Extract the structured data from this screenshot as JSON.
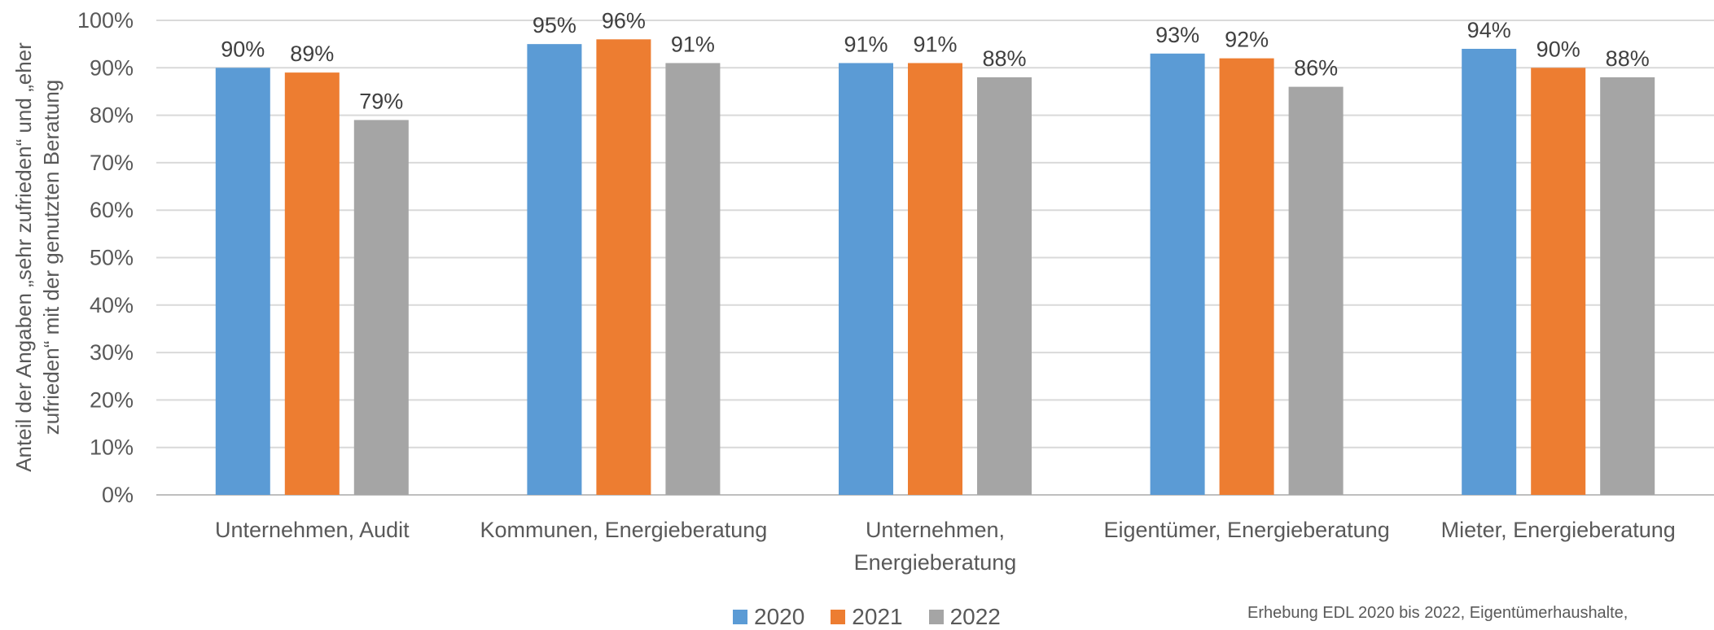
{
  "chart_data": {
    "type": "bar",
    "categories": [
      [
        "Unternehmen, Audit"
      ],
      [
        "Kommunen, Energieberatung"
      ],
      [
        "Unternehmen,",
        "Energieberatung"
      ],
      [
        "Eigentümer, Energieberatung"
      ],
      [
        "Mieter, Energieberatung"
      ]
    ],
    "series": [
      {
        "name": "2020",
        "color": "#5b9bd5",
        "values": [
          90,
          95,
          91,
          93,
          94
        ]
      },
      {
        "name": "2021",
        "color": "#ed7d31",
        "values": [
          89,
          96,
          91,
          92,
          90
        ]
      },
      {
        "name": "2022",
        "color": "#a5a5a5",
        "values": [
          79,
          91,
          88,
          86,
          88
        ]
      }
    ],
    "data_labels": [
      [
        "90%",
        "95%",
        "91%",
        "93%",
        "94%"
      ],
      [
        "89%",
        "96%",
        "91%",
        "92%",
        "90%"
      ],
      [
        "79%",
        "91%",
        "88%",
        "86%",
        "88%"
      ]
    ],
    "ylim": [
      0,
      100
    ],
    "yticks": [
      "0%",
      "10%",
      "20%",
      "30%",
      "40%",
      "50%",
      "60%",
      "70%",
      "80%",
      "90%",
      "100%"
    ],
    "ylabel_lines": [
      "Anteil der Angaben „sehr zufrieden“ und „eher",
      "zufrieden“ mit der genutzten Beratung"
    ],
    "grid": true,
    "legend_position": "bottom"
  },
  "source_note": "Erhebung EDL 2020 bis 2022, Eigentümerhaushalte,"
}
